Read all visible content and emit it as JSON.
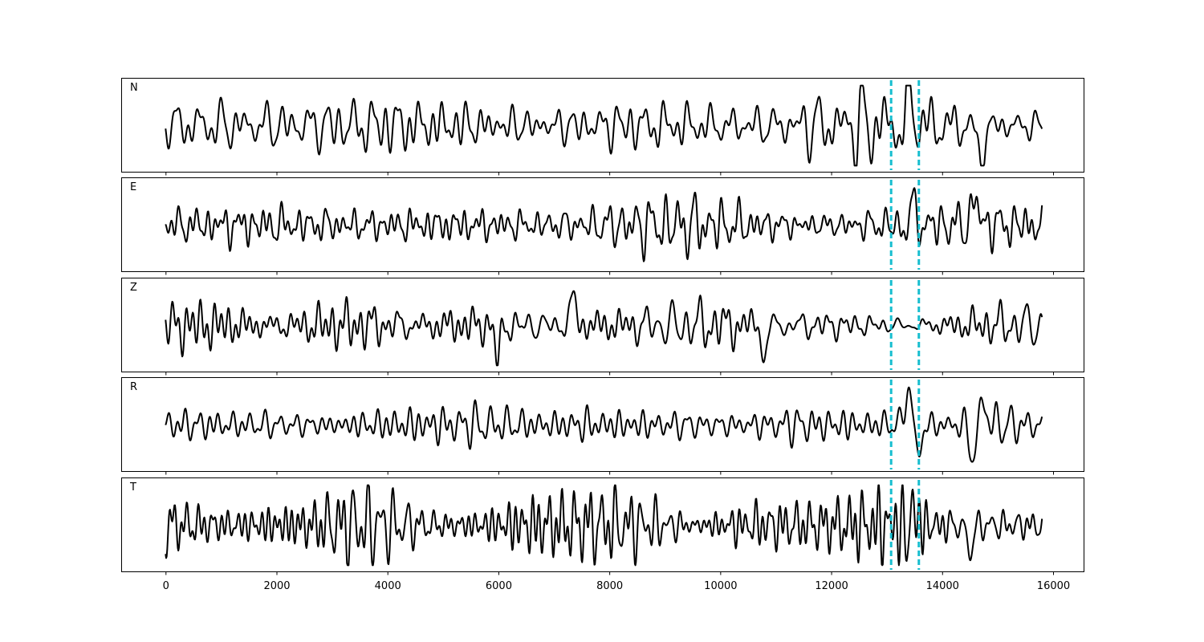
{
  "chart_data": {
    "type": "line",
    "title": "",
    "xlabel": "",
    "ylabel": "",
    "xlim": [
      -800,
      16550
    ],
    "x_ticks": [
      0,
      2000,
      4000,
      6000,
      8000,
      10000,
      12000,
      14000,
      16000
    ],
    "x_tick_labels": [
      "0",
      "2000",
      "4000",
      "6000",
      "8000",
      "10000",
      "12000",
      "14000",
      "16000"
    ],
    "x_range": [
      0,
      15800
    ],
    "ylim": [
      -1,
      1
    ],
    "grid": false,
    "line_color": "#000000",
    "marker_color": "#17becf",
    "markers_x": [
      13080,
      13580
    ],
    "panels": [
      {
        "label": "N",
        "seed": 11,
        "amplitude": 0.45,
        "events": [
          {
            "x": 13450,
            "amp": 0.8,
            "width": 70
          },
          {
            "x": 14700,
            "amp": -0.8,
            "width": 90
          }
        ]
      },
      {
        "label": "E",
        "seed": 23,
        "amplitude": 0.33,
        "events": [
          {
            "x": 13400,
            "amp": 0.85,
            "width": 110
          },
          {
            "x": 13350,
            "amp": -0.75,
            "width": 90
          },
          {
            "x": 14600,
            "amp": 0.6,
            "width": 90
          }
        ]
      },
      {
        "label": "Z",
        "seed": 37,
        "amplitude": 0.45,
        "events": [
          {
            "x": 5990,
            "amp": -0.85,
            "width": 60
          },
          {
            "x": 7350,
            "amp": 0.8,
            "width": 60
          },
          {
            "x": 10800,
            "amp": -0.8,
            "width": 60
          }
        ]
      },
      {
        "label": "R",
        "seed": 53,
        "amplitude": 0.34,
        "events": [
          {
            "x": 13420,
            "amp": 0.9,
            "width": 110
          },
          {
            "x": 13550,
            "amp": -0.9,
            "width": 90
          },
          {
            "x": 14550,
            "amp": -0.75,
            "width": 80
          },
          {
            "x": 14750,
            "amp": 0.55,
            "width": 80
          }
        ]
      },
      {
        "label": "T",
        "seed": 71,
        "amplitude": 0.5,
        "events": [
          {
            "x": 13450,
            "amp": 0.85,
            "width": 60
          },
          {
            "x": 13400,
            "amp": -0.85,
            "width": 50
          },
          {
            "x": 14500,
            "amp": -0.6,
            "width": 80
          }
        ]
      }
    ]
  }
}
